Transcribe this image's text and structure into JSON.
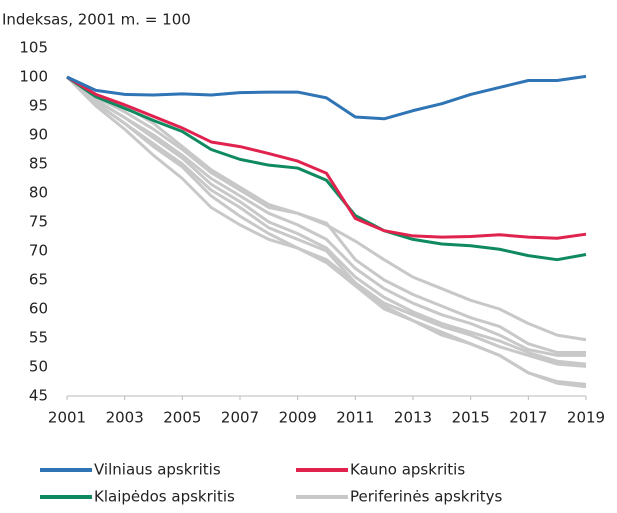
{
  "chart_data": {
    "type": "line",
    "title": "Indeksas, 2001 m. = 100",
    "x": [
      2001,
      2002,
      2003,
      2004,
      2005,
      2006,
      2007,
      2008,
      2009,
      2010,
      2011,
      2012,
      2013,
      2014,
      2015,
      2016,
      2017,
      2018,
      2019
    ],
    "xlim": [
      2001,
      2019
    ],
    "xticks": [
      2001,
      2003,
      2005,
      2007,
      2009,
      2011,
      2013,
      2015,
      2017,
      2019
    ],
    "ylim": [
      45,
      105
    ],
    "yticks": [
      45,
      50,
      55,
      60,
      65,
      70,
      75,
      80,
      85,
      90,
      95,
      100,
      105
    ],
    "grid": false,
    "series": [
      {
        "name": "Vilniaus apskritis",
        "color": "#2f75b5",
        "values": [
          100,
          97.7,
          97.0,
          96.9,
          97.1,
          96.9,
          97.3,
          97.4,
          97.4,
          96.4,
          93.1,
          92.8,
          94.2,
          95.4,
          97.0,
          98.2,
          99.4,
          99.4,
          100.1
        ]
      },
      {
        "name": "Kauno apskritis",
        "color": "#e0234e",
        "values": [
          100,
          97,
          95.2,
          93.2,
          91.2,
          88.8,
          88,
          86.8,
          85.5,
          83.4,
          75.6,
          73.5,
          72.6,
          72.4,
          72.5,
          72.8,
          72.4,
          72.2,
          72.9
        ]
      },
      {
        "name": "Klaipėdos apskritis",
        "color": "#0f8a5f",
        "values": [
          100,
          96.6,
          94.6,
          92.5,
          90.6,
          87.5,
          85.8,
          84.8,
          84.3,
          82.2,
          76.1,
          73.5,
          72.0,
          71.2,
          70.9,
          70.3,
          69.2,
          68.5,
          69.4
        ]
      },
      {
        "name": "Periferinės apskritys",
        "color": "#c8c8c8",
        "values": [
          100,
          97,
          95,
          92,
          88,
          84,
          81,
          78,
          76.5,
          74.5,
          71.7,
          68.5,
          65.5,
          63.5,
          61.5,
          60,
          57.5,
          55.5,
          54.7
        ]
      },
      {
        "color": "#c8c8c8",
        "values": [
          100,
          96.5,
          94,
          91,
          87.5,
          83.5,
          80.5,
          77.5,
          76.5,
          74.8,
          68.5,
          65,
          62.5,
          60.5,
          58.5,
          57,
          54,
          52.5,
          52.5
        ]
      },
      {
        "color": "#c8c8c8",
        "values": [
          100,
          96,
          93,
          90,
          86.5,
          82.5,
          79.5,
          76.5,
          74.5,
          72,
          67,
          63.5,
          61,
          59,
          57.5,
          55.5,
          53,
          52,
          52
        ]
      },
      {
        "color": "#c8c8c8",
        "values": [
          100,
          96,
          93,
          89.5,
          86,
          81.5,
          78.5,
          75,
          73,
          70.5,
          65.5,
          62,
          59.5,
          57.5,
          56,
          54.5,
          52.5,
          51,
          50.5
        ]
      },
      {
        "color": "#c8c8c8",
        "values": [
          100,
          95.5,
          92,
          88.5,
          85,
          80.5,
          77.5,
          74,
          72,
          70,
          64.5,
          61,
          59,
          57,
          55.5,
          53.5,
          52,
          50.5,
          50.1
        ]
      },
      {
        "color": "#c8c8c8",
        "values": [
          100,
          95,
          91,
          86.5,
          82.5,
          77.5,
          74.5,
          72,
          70.5,
          68.5,
          64.5,
          60.5,
          58,
          55.5,
          54,
          52,
          49,
          47.5,
          47
        ]
      },
      {
        "color": "#c8c8c8",
        "values": [
          100,
          95.5,
          92,
          88,
          84.5,
          79.5,
          76,
          73,
          70.5,
          68,
          64,
          60,
          58,
          56,
          54,
          52,
          49,
          47.2,
          46.6
        ]
      }
    ]
  }
}
